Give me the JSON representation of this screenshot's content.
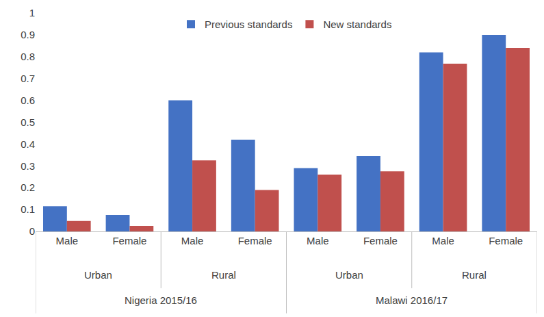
{
  "chart_data": {
    "type": "bar",
    "categories": [
      "Male",
      "Female",
      "Male",
      "Female",
      "Male",
      "Female",
      "Male",
      "Female"
    ],
    "category_groups": [
      [
        "Urban",
        "Urban",
        "Rural",
        "Rural",
        "Urban",
        "Urban",
        "Rural",
        "Rural"
      ],
      [
        "Nigeria 2015/16",
        "Nigeria 2015/16",
        "Nigeria 2015/16",
        "Nigeria 2015/16",
        "Malawi 2016/17",
        "Malawi 2016/17",
        "Malawi 2016/17",
        "Malawi 2016/17"
      ]
    ],
    "series": [
      {
        "name": "Previous standards",
        "color": "#4472C4",
        "values": [
          0.115,
          0.075,
          0.6,
          0.42,
          0.29,
          0.345,
          0.82,
          0.9
        ]
      },
      {
        "name": "New standards",
        "color": "#C0504D",
        "values": [
          0.048,
          0.025,
          0.325,
          0.19,
          0.26,
          0.275,
          0.768,
          0.84
        ]
      }
    ],
    "ylim": [
      0,
      1
    ],
    "yticks": [
      0,
      0.1,
      0.2,
      0.3,
      0.4,
      0.5,
      0.6,
      0.7,
      0.8,
      0.9,
      1
    ],
    "grid": false,
    "legend": "top"
  }
}
